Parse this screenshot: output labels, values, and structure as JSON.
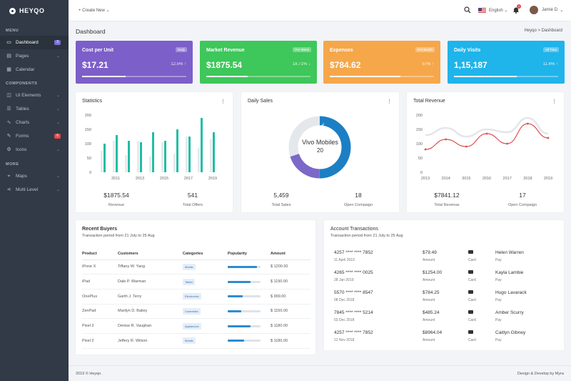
{
  "brand": "HEYQO",
  "sidebar": {
    "sections": [
      "MENU",
      "COMPONENTS",
      "MORE"
    ],
    "items": [
      {
        "label": "Dashboard",
        "icon": "monitor-icon",
        "badge": "3",
        "badge_color": "#7b6ed6",
        "active": true,
        "chevron": false
      },
      {
        "label": "Pages",
        "icon": "file-icon",
        "chevron": true
      },
      {
        "label": "Calendar",
        "icon": "calendar-icon",
        "chevron": false
      },
      {
        "label": "UI Elements",
        "icon": "layers-icon",
        "chevron": true
      },
      {
        "label": "Tables",
        "icon": "table-icon",
        "chevron": true
      },
      {
        "label": "Charts",
        "icon": "chart-icon",
        "chevron": true
      },
      {
        "label": "Forms",
        "icon": "form-icon",
        "badge": "6",
        "badge_color": "#e5464f",
        "chevron": false
      },
      {
        "label": "Icons",
        "icon": "gear-icon",
        "chevron": true
      },
      {
        "label": "Maps",
        "icon": "map-icon",
        "chevron": true
      },
      {
        "label": "Multi Level",
        "icon": "share-icon",
        "chevron": true
      }
    ]
  },
  "topbar": {
    "create": "+ Create New ⌄",
    "notifications": "1",
    "language": "English",
    "user": "Jamie D."
  },
  "page": {
    "title": "Dashboard",
    "breadcrumb": "Heyqo  >  Dashboard"
  },
  "stats": [
    {
      "title": "Cost per Unit",
      "badge": "Daily",
      "value": "$17.21",
      "pct": "12.5%",
      "trend": "up",
      "progress": 0.42,
      "color": "#7c5fc9"
    },
    {
      "title": "Market Revenue",
      "badge": "Per Week",
      "value": "$1875.54",
      "pct": "18.71%",
      "trend": "down",
      "progress": 0.4,
      "color": "#3ec75a"
    },
    {
      "title": "Expenses",
      "badge": "Per Month",
      "value": "$784.62",
      "pct": "57%",
      "trend": "up",
      "progress": 0.68,
      "color": "#f6a74a"
    },
    {
      "title": "Daily Visits",
      "badge": "All Time",
      "value": "1,15,187",
      "pct": "11.6%",
      "trend": "up",
      "progress": 0.6,
      "color": "#1fb4ea"
    }
  ],
  "statistics": {
    "title": "Statistics",
    "footer": [
      {
        "value": "$1875.54",
        "label": "Revenue"
      },
      {
        "value": "541",
        "label": "Total Offers"
      }
    ]
  },
  "daily_sales": {
    "title": "Daily Sales",
    "center_title": "Vivo Mobiles",
    "center_value": "20",
    "footer": [
      {
        "value": "5,459",
        "label": "Total Sales"
      },
      {
        "value": "18",
        "label": "Open Compaign"
      }
    ]
  },
  "total_revenue": {
    "title": "Total Revenue",
    "footer": [
      {
        "value": "$7841.12",
        "label": "Total Revenue"
      },
      {
        "value": "17",
        "label": "Open Compaign"
      }
    ]
  },
  "chart_data": [
    {
      "type": "bar",
      "yticks": [
        "0",
        "50",
        "100",
        "150",
        "200"
      ],
      "ylim": [
        0,
        200
      ],
      "xticks": [
        "2011",
        "2013",
        "2015",
        "2017",
        "2019"
      ],
      "categories": [
        "2010",
        "2011",
        "2012",
        "2013",
        "2014",
        "2015",
        "2016",
        "2017",
        "2018",
        "2019"
      ],
      "series": [
        {
          "values": [
            75,
            110,
            60,
            110,
            55,
            105,
            65,
            125,
            85,
            115
          ],
          "color": "#e6e9ed"
        },
        {
          "values": [
            100,
            130,
            110,
            105,
            140,
            110,
            150,
            125,
            190,
            140
          ],
          "color": "#1ebea5"
        }
      ]
    },
    {
      "type": "pie",
      "slices": [
        {
          "value": 50,
          "color": "#1c7fc4"
        },
        {
          "value": 20,
          "color": "#7b68c9"
        },
        {
          "value": 30,
          "color": "#e4e7eb"
        }
      ]
    },
    {
      "type": "line",
      "yticks": [
        "0",
        "50",
        "100",
        "150",
        "200"
      ],
      "ylim": [
        0,
        200
      ],
      "x": [
        "2013",
        "2014",
        "2015",
        "2016",
        "2017",
        "2018",
        "2019"
      ],
      "series": [
        {
          "values": [
            130,
            155,
            125,
            150,
            140,
            190,
            135
          ],
          "color": "#e4e6ea"
        },
        {
          "values": [
            80,
            115,
            90,
            135,
            100,
            170,
            120
          ],
          "color": "#e04e4e"
        }
      ]
    }
  ],
  "buyers": {
    "title": "Recent Buyers",
    "subtitle": "Transaction period from 21 July to 25 Aug",
    "headers": [
      "Product",
      "Customers",
      "Categories",
      "Popularity",
      "Amount"
    ],
    "rows": [
      {
        "product": "iPone X",
        "customer": "Tiffany W. Yang",
        "category": "Mobile",
        "popularity": 0.9,
        "amount": "$ 1200.00"
      },
      {
        "product": "iPad",
        "customer": "Dale P. Warman",
        "category": "Tablet",
        "popularity": 0.7,
        "amount": "$ 1190.00"
      },
      {
        "product": "OnePlus",
        "customer": "Garth J. Terry",
        "category": "Electronics",
        "popularity": 0.45,
        "amount": "$ 999.00"
      },
      {
        "product": "ZenPad",
        "customer": "Marilyn D. Bailey",
        "category": "Cosmetics",
        "popularity": 0.42,
        "amount": "$ 1150.00"
      },
      {
        "product": "Pixel 2",
        "customer": "Denise R. Vaughan",
        "category": "Appliences",
        "popularity": 0.7,
        "amount": "$ 1180.00"
      },
      {
        "product": "Pixel 2",
        "customer": "Jeffery R. Wilson",
        "category": "Mobile",
        "popularity": 0.5,
        "amount": "$ 1180.00"
      }
    ]
  },
  "transactions": {
    "title": "Account Transactions",
    "subtitle": "Transaction period from 21 July to 25 Aug",
    "rows": [
      {
        "card": "4257 **** **** 7852",
        "date": "11 April 2019",
        "amount": "$79.49",
        "amount_label": "Amount",
        "type": "Card",
        "name": "Helen Warren",
        "action": "Pay"
      },
      {
        "card": "4265 **** **** 0025",
        "date": "28 Jan 2019",
        "amount": "$1254.00",
        "amount_label": "Amount",
        "type": "Card",
        "name": "Kayla Lambie",
        "action": "Pay"
      },
      {
        "card": "5570 **** **** 8547",
        "date": "08 Dec 2018",
        "amount": "$784.25",
        "amount_label": "Amount",
        "type": "Card",
        "name": "Hugo Lavarack",
        "action": "Pay"
      },
      {
        "card": "7845 **** **** 5214",
        "date": "03 Dec 2018",
        "amount": "$485.24",
        "amount_label": "Amount",
        "type": "Card",
        "name": "Amber Scurry",
        "action": "Pay"
      },
      {
        "card": "4257 **** **** 7852",
        "date": "12 Nov 2018",
        "amount": "$8964.04",
        "amount_label": "Amount",
        "type": "Card",
        "name": "Caitlyn Gibney",
        "action": "Pay"
      }
    ]
  },
  "footer": {
    "left": "2019 © Heyqo.",
    "right": "Design & Develop by Myra"
  }
}
